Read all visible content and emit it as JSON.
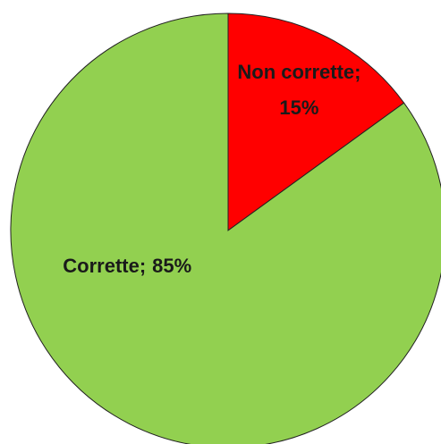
{
  "chart_data": {
    "type": "pie",
    "categories": [
      "Non corrette;",
      "Corrette;"
    ],
    "values": [
      15,
      85
    ],
    "value_labels": [
      "15%",
      "85%"
    ],
    "colors": [
      "#ff0000",
      "#92d050"
    ]
  }
}
